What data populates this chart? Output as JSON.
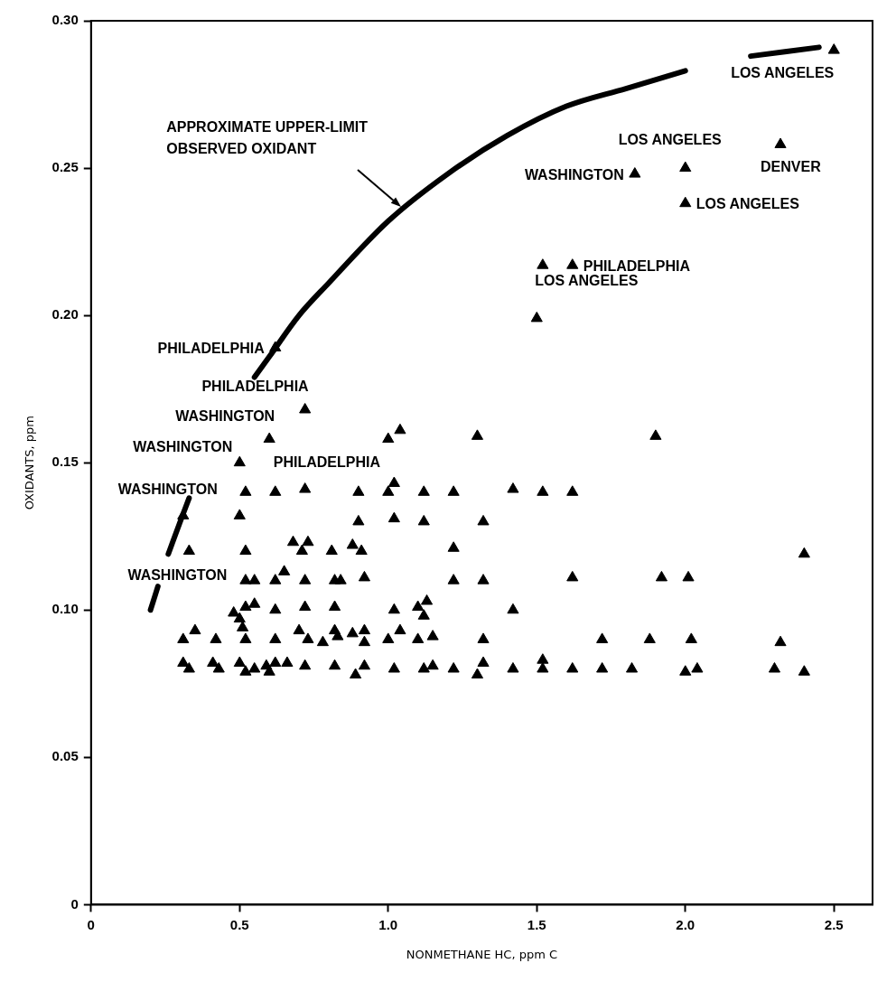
{
  "chart_data": {
    "type": "scatter",
    "xlabel": "NONMETHANE HC, ppm C",
    "ylabel": "OXIDANTS, ppm",
    "xlim": [
      0,
      2.63
    ],
    "ylim": [
      0,
      0.3
    ],
    "xticks": [
      0,
      0.5,
      {
        "value": 1,
        "label": "1.0"
      },
      1.5,
      {
        "value": 2,
        "label": "2.0"
      },
      2.5
    ],
    "yticks": [
      0,
      0.05,
      {
        "value": 0.1,
        "label": "0.10"
      },
      0.15,
      {
        "value": 0.2,
        "label": "0.20"
      },
      0.25,
      {
        "value": 0.3,
        "label": "0.30"
      }
    ],
    "grid": false,
    "legend": false,
    "marker": "triangle",
    "series": [
      {
        "type": "scatter",
        "color": "#000000",
        "x": [
          2.5,
          2.32,
          2.0,
          1.83,
          2.0,
          1.52,
          1.62,
          1.5,
          0.62,
          0.72,
          0.6,
          0.5,
          0.31,
          1.0,
          1.04,
          1.3,
          1.9,
          0.52,
          0.62,
          0.72,
          0.9,
          1.0,
          1.02,
          1.12,
          1.22,
          1.42,
          1.52,
          1.62,
          0.5,
          0.9,
          1.02,
          1.12,
          1.32,
          0.33,
          0.52,
          0.68,
          0.73,
          0.71,
          0.81,
          0.88,
          0.91,
          1.22,
          2.4,
          0.52,
          0.55,
          0.62,
          0.65,
          0.72,
          0.82,
          0.84,
          0.92,
          1.22,
          1.32,
          1.62,
          1.92,
          2.01,
          0.48,
          0.5,
          0.52,
          0.55,
          0.62,
          0.72,
          0.82,
          1.02,
          1.1,
          1.13,
          1.12,
          1.42,
          0.31,
          0.35,
          0.42,
          0.51,
          0.52,
          0.62,
          0.7,
          0.73,
          0.78,
          0.82,
          0.83,
          0.88,
          0.92,
          0.92,
          1.0,
          1.04,
          1.1,
          1.15,
          1.32,
          1.72,
          1.88,
          2.02,
          2.32,
          0.31,
          0.33,
          0.41,
          0.43,
          0.5,
          0.52,
          0.55,
          0.59,
          0.6,
          0.62,
          0.66,
          0.72,
          0.82,
          0.89,
          0.92,
          1.02,
          1.12,
          1.15,
          1.22,
          1.3,
          1.32,
          1.42,
          1.52,
          1.52,
          1.62,
          1.72,
          1.82,
          2.0,
          2.04,
          2.3,
          2.4
        ],
        "values": [
          0.29,
          0.258,
          0.25,
          0.248,
          0.238,
          0.217,
          0.217,
          0.199,
          0.189,
          0.168,
          0.158,
          0.15,
          0.132,
          0.158,
          0.161,
          0.159,
          0.159,
          0.14,
          0.14,
          0.141,
          0.14,
          0.14,
          0.143,
          0.14,
          0.14,
          0.141,
          0.14,
          0.14,
          0.132,
          0.13,
          0.131,
          0.13,
          0.13,
          0.12,
          0.12,
          0.123,
          0.123,
          0.12,
          0.12,
          0.122,
          0.12,
          0.121,
          0.119,
          0.11,
          0.11,
          0.11,
          0.113,
          0.11,
          0.11,
          0.11,
          0.111,
          0.11,
          0.11,
          0.111,
          0.111,
          0.111,
          0.099,
          0.097,
          0.101,
          0.102,
          0.1,
          0.101,
          0.101,
          0.1,
          0.101,
          0.103,
          0.098,
          0.1,
          0.09,
          0.093,
          0.09,
          0.094,
          0.09,
          0.09,
          0.093,
          0.09,
          0.089,
          0.093,
          0.091,
          0.092,
          0.093,
          0.089,
          0.09,
          0.093,
          0.09,
          0.091,
          0.09,
          0.09,
          0.09,
          0.09,
          0.089,
          0.082,
          0.08,
          0.082,
          0.08,
          0.082,
          0.079,
          0.08,
          0.081,
          0.079,
          0.082,
          0.082,
          0.081,
          0.081,
          0.078,
          0.081,
          0.08,
          0.08,
          0.081,
          0.08,
          0.078,
          0.082,
          0.08,
          0.08,
          0.083,
          0.08,
          0.08,
          0.08,
          0.079,
          0.08,
          0.08,
          0.079
        ]
      },
      {
        "type": "line",
        "color": "#000000",
        "marker": "none",
        "line_style": "solid",
        "x": [
          0.2,
          0.225,
          0.24,
          0.26,
          0.3,
          0.33,
          0.44,
          0.55,
          0.6,
          0.7,
          0.8,
          1.0,
          1.2,
          1.4,
          1.6,
          1.8,
          2.0,
          2.1,
          2.22,
          2.45
        ],
        "values": [
          0.1,
          0.108,
          null,
          0.119,
          0.13,
          0.138,
          null,
          0.179,
          0.186,
          0.2,
          0.211,
          0.232,
          0.248,
          0.261,
          0.271,
          0.277,
          0.283,
          null,
          0.288,
          0.291
        ]
      }
    ],
    "annotations": [
      {
        "text": "LOS ANGELES",
        "x": 2.5,
        "y": 0.29
      },
      {
        "text": "LOS ANGELES",
        "x": 2.0,
        "y": 0.25
      },
      {
        "text": "WASHINGTON",
        "x": 1.83,
        "y": 0.248
      },
      {
        "text": "DENVER",
        "x": 2.32,
        "y": 0.258
      },
      {
        "text": "LOS ANGELES",
        "x": 2.0,
        "y": 0.238
      },
      {
        "text": "PHILADELPHIA",
        "x": 1.62,
        "y": 0.217
      },
      {
        "text": "LOS ANGELES",
        "x": 1.5,
        "y": 0.199
      },
      {
        "text": "PHILADELPHIA",
        "x": 0.62,
        "y": 0.189
      },
      {
        "text": "PHILADELPHIA",
        "x": 0.72,
        "y": 0.168
      },
      {
        "text": "WASHINGTON",
        "x": 0.6,
        "y": 0.158
      },
      {
        "text": "WASHINGTON",
        "x": 0.5,
        "y": 0.15
      },
      {
        "text": "PHILADELPHIA",
        "x": 0.62,
        "y": 0.14
      },
      {
        "text": "WASHINGTON",
        "x": 0.31,
        "y": 0.132
      },
      {
        "text": "WASHINGTON",
        "x": 0.33,
        "y": 0.12
      },
      {
        "text": "APPROXIMATE UPPER-LIMIT OBSERVED OXIDANT",
        "x": 1.05,
        "y": 0.236
      }
    ]
  }
}
